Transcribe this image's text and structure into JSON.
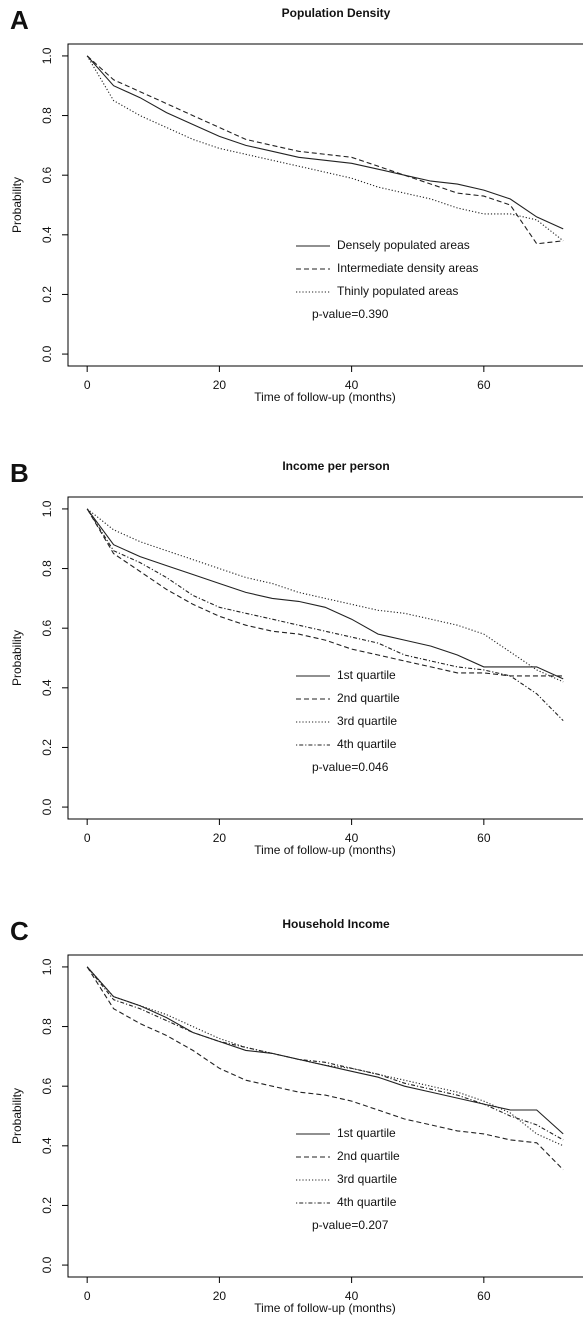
{
  "chart_data": [
    {
      "type": "line",
      "panel_label": "A",
      "title": "Population Density",
      "x_label": "Time of follow-up (months)",
      "y_label": "Probability",
      "annotation": "p-value=0.390",
      "x": [
        0,
        4,
        8,
        12,
        16,
        20,
        24,
        28,
        32,
        36,
        40,
        44,
        48,
        52,
        56,
        60,
        64,
        68,
        72
      ],
      "xlim": [
        -2.9,
        75
      ],
      "ylim": [
        -0.04,
        1.04
      ],
      "xticks": [
        0,
        20,
        40,
        60
      ],
      "yticks": [
        {
          "value": 0,
          "label": "0.0"
        },
        0.2,
        0.4,
        0.6,
        0.8,
        {
          "value": 1,
          "label": "1.0"
        }
      ],
      "series": [
        {
          "name": "Densely populated areas",
          "color": "#222222",
          "linestyle": "solid",
          "values": [
            1,
            0.9,
            0.86,
            0.81,
            0.77,
            0.73,
            0.7,
            0.68,
            0.66,
            0.65,
            0.64,
            0.62,
            0.6,
            0.58,
            0.57,
            0.55,
            0.52,
            0.46,
            0.42
          ]
        },
        {
          "name": "Intermediate density areas",
          "color": "#222222",
          "linestyle": "dashed",
          "values": [
            1,
            0.92,
            0.88,
            0.84,
            0.8,
            0.76,
            0.72,
            0.7,
            0.68,
            0.67,
            0.66,
            0.63,
            0.6,
            0.57,
            0.54,
            0.53,
            0.5,
            0.37,
            0.38
          ]
        },
        {
          "name": "Thinly populated areas",
          "color": "#222222",
          "linestyle": "dotted",
          "values": [
            1,
            0.85,
            0.8,
            0.76,
            0.72,
            0.69,
            0.67,
            0.65,
            0.63,
            0.61,
            0.59,
            0.56,
            0.54,
            0.52,
            0.49,
            0.47,
            0.47,
            0.45,
            0.38
          ]
        }
      ]
    },
    {
      "type": "line",
      "panel_label": "B",
      "title": "Income per person",
      "x_label": "Time of follow-up (months)",
      "y_label": "Probability",
      "annotation": "p-value=0.046",
      "x": [
        0,
        4,
        8,
        12,
        16,
        20,
        24,
        28,
        32,
        36,
        40,
        44,
        48,
        52,
        56,
        60,
        64,
        68,
        72
      ],
      "xlim": [
        -2.9,
        75
      ],
      "ylim": [
        -0.04,
        1.04
      ],
      "xticks": [
        0,
        20,
        40,
        60
      ],
      "yticks": [
        {
          "value": 0,
          "label": "0.0"
        },
        0.2,
        0.4,
        0.6,
        0.8,
        {
          "value": 1,
          "label": "1.0"
        }
      ],
      "series": [
        {
          "name": "1st quartile",
          "color": "#222222",
          "linestyle": "solid",
          "values": [
            1,
            0.88,
            0.84,
            0.81,
            0.78,
            0.75,
            0.72,
            0.7,
            0.69,
            0.67,
            0.63,
            0.58,
            0.56,
            0.54,
            0.51,
            0.47,
            0.47,
            0.47,
            0.43
          ]
        },
        {
          "name": "2nd quartile",
          "color": "#222222",
          "linestyle": "dashed",
          "values": [
            1,
            0.85,
            0.79,
            0.73,
            0.68,
            0.64,
            0.61,
            0.59,
            0.58,
            0.56,
            0.53,
            0.51,
            0.49,
            0.47,
            0.45,
            0.45,
            0.44,
            0.44,
            0.44
          ]
        },
        {
          "name": "3rd quartile",
          "color": "#222222",
          "linestyle": "dotted",
          "values": [
            1,
            0.93,
            0.89,
            0.86,
            0.83,
            0.8,
            0.77,
            0.75,
            0.72,
            0.7,
            0.68,
            0.66,
            0.65,
            0.63,
            0.61,
            0.58,
            0.52,
            0.46,
            0.42
          ]
        },
        {
          "name": "4th quartile",
          "color": "#222222",
          "linestyle": "dotdash",
          "values": [
            1,
            0.86,
            0.82,
            0.77,
            0.71,
            0.67,
            0.65,
            0.63,
            0.61,
            0.59,
            0.57,
            0.55,
            0.51,
            0.49,
            0.47,
            0.46,
            0.44,
            0.38,
            0.29
          ]
        }
      ]
    },
    {
      "type": "line",
      "panel_label": "C",
      "title": "Household Income",
      "x_label": "Time of follow-up (months)",
      "y_label": "Probability",
      "annotation": "p-value=0.207",
      "x": [
        0,
        4,
        8,
        12,
        16,
        20,
        24,
        28,
        32,
        36,
        40,
        44,
        48,
        52,
        56,
        60,
        64,
        68,
        72
      ],
      "xlim": [
        -2.9,
        75
      ],
      "ylim": [
        -0.04,
        1.04
      ],
      "xticks": [
        0,
        20,
        40,
        60
      ],
      "yticks": [
        {
          "value": 0,
          "label": "0.0"
        },
        0.2,
        0.4,
        0.6,
        0.8,
        {
          "value": 1,
          "label": "1.0"
        }
      ],
      "series": [
        {
          "name": "1st quartile",
          "color": "#222222",
          "linestyle": "solid",
          "values": [
            1,
            0.9,
            0.87,
            0.83,
            0.78,
            0.75,
            0.72,
            0.71,
            0.69,
            0.67,
            0.65,
            0.63,
            0.6,
            0.58,
            0.56,
            0.54,
            0.52,
            0.52,
            0.44
          ]
        },
        {
          "name": "2nd quartile",
          "color": "#222222",
          "linestyle": "dashed",
          "values": [
            1,
            0.86,
            0.81,
            0.77,
            0.72,
            0.66,
            0.62,
            0.6,
            0.58,
            0.57,
            0.55,
            0.52,
            0.49,
            0.47,
            0.45,
            0.44,
            0.42,
            0.41,
            0.32
          ]
        },
        {
          "name": "3rd quartile",
          "color": "#222222",
          "linestyle": "dotted",
          "values": [
            1,
            0.9,
            0.87,
            0.84,
            0.8,
            0.76,
            0.73,
            0.71,
            0.69,
            0.67,
            0.66,
            0.64,
            0.62,
            0.6,
            0.58,
            0.55,
            0.51,
            0.44,
            0.4
          ]
        },
        {
          "name": "4th quartile",
          "color": "#222222",
          "linestyle": "dotdash",
          "values": [
            1,
            0.89,
            0.86,
            0.82,
            0.78,
            0.75,
            0.73,
            0.71,
            0.69,
            0.68,
            0.66,
            0.64,
            0.61,
            0.59,
            0.57,
            0.54,
            0.5,
            0.47,
            0.42
          ]
        }
      ]
    }
  ]
}
